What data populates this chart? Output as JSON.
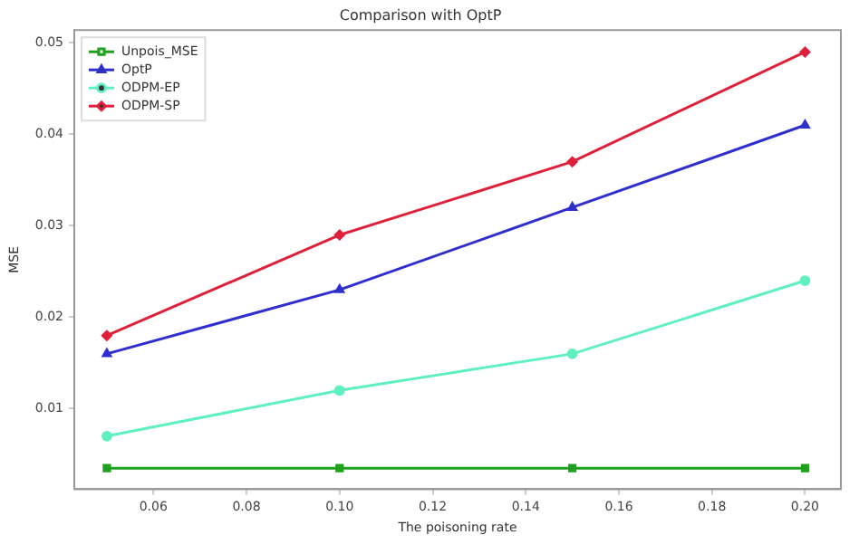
{
  "chart_data": {
    "type": "line",
    "title": "Comparison with OptP",
    "xlabel": "The poisoning rate",
    "ylabel": "MSE",
    "x": [
      0.05,
      0.1,
      0.15,
      0.2
    ],
    "series": [
      {
        "name": "Unpois_MSE",
        "color": "#1fa01f",
        "values": [
          0.0035,
          0.0035,
          0.0035,
          0.0035
        ],
        "marker": "square"
      },
      {
        "name": "OptP",
        "color": "#2f2fd0",
        "values": [
          0.016,
          0.023,
          0.032,
          0.041
        ],
        "marker": "triangle"
      },
      {
        "name": "ODPM-EP",
        "color": "#5ff0c0",
        "values": [
          0.007,
          0.012,
          0.016,
          0.024
        ],
        "marker": "circle"
      },
      {
        "name": "ODPM-SP",
        "color": "#e0203a",
        "values": [
          0.018,
          0.029,
          0.037,
          0.049
        ],
        "marker": "diamond"
      }
    ],
    "xlim": [
      0.043,
      0.2077
    ],
    "xticks": [
      {
        "value": 0.06,
        "label": "0.06"
      },
      {
        "value": 0.08,
        "label": "0.08"
      },
      {
        "value": 0.1,
        "label": "0.10"
      },
      {
        "value": 0.12,
        "label": "0.12"
      },
      {
        "value": 0.14,
        "label": "0.14"
      },
      {
        "value": 0.16,
        "label": "0.16"
      },
      {
        "value": 0.18,
        "label": "0.18"
      },
      {
        "value": 0.2,
        "label": "0.20"
      }
    ],
    "ylim": [
      0.0012,
      0.0514
    ],
    "yticks": [
      0.01,
      0.02,
      0.03,
      0.04,
      0.05
    ],
    "grid": false,
    "legend": "top left"
  }
}
